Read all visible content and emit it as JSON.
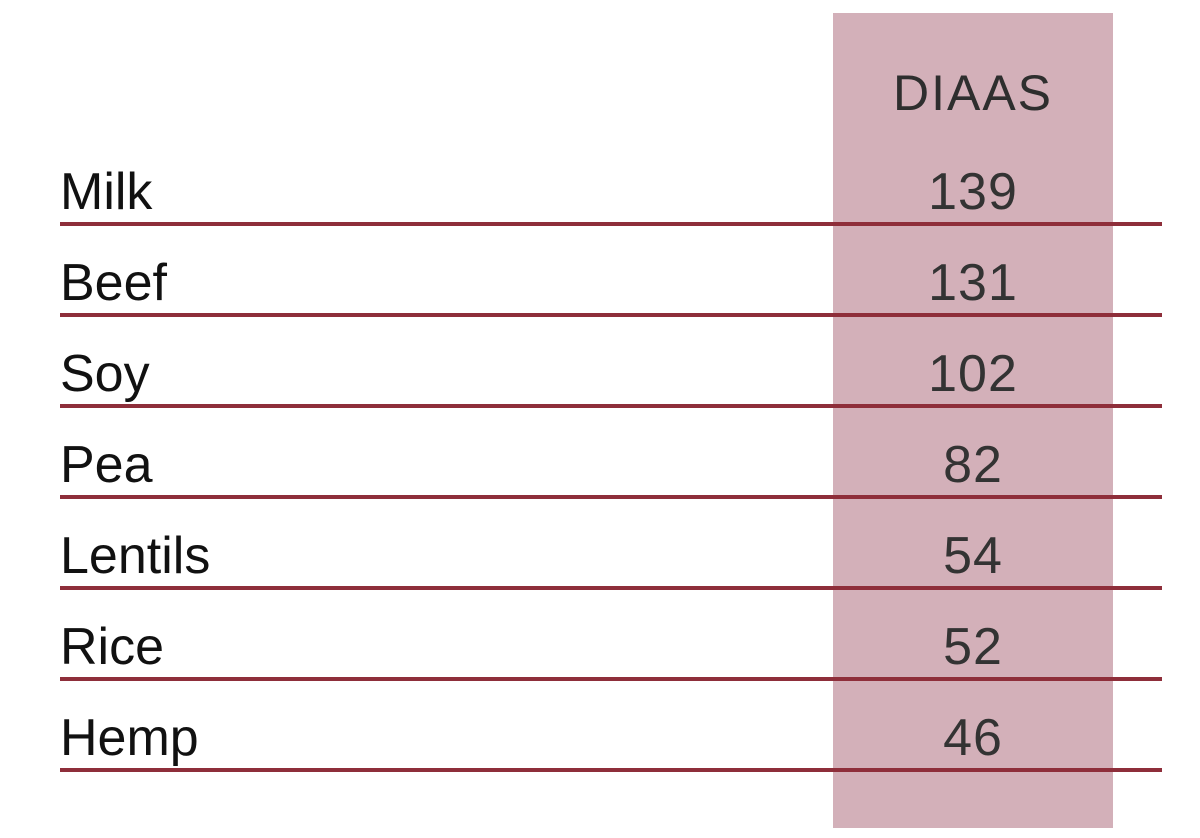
{
  "table": {
    "header": {
      "value_column": "DIAAS"
    },
    "rows": [
      {
        "label": "Milk",
        "value": "139"
      },
      {
        "label": "Beef",
        "value": "131"
      },
      {
        "label": "Soy",
        "value": "102"
      },
      {
        "label": "Pea",
        "value": "82"
      },
      {
        "label": "Lentils",
        "value": "54"
      },
      {
        "label": "Rice",
        "value": "52"
      },
      {
        "label": "Hemp",
        "value": "46"
      }
    ]
  },
  "colors": {
    "background": "#ffffff",
    "band": "#d3b0b9",
    "rule": "#8e2e3a",
    "label_text": "#111111",
    "value_text": "#333333",
    "header_text": "#2e2e2e"
  },
  "chart_data": {
    "type": "table",
    "title": "",
    "value_column_header": "DIAAS",
    "categories": [
      "Milk",
      "Beef",
      "Soy",
      "Pea",
      "Lentils",
      "Rice",
      "Hemp"
    ],
    "values": [
      139,
      131,
      102,
      82,
      54,
      52,
      46
    ],
    "layout_hints": {
      "highlighted_value_column": true,
      "row_separator_lines": true,
      "grid": "horizontal-only"
    }
  }
}
